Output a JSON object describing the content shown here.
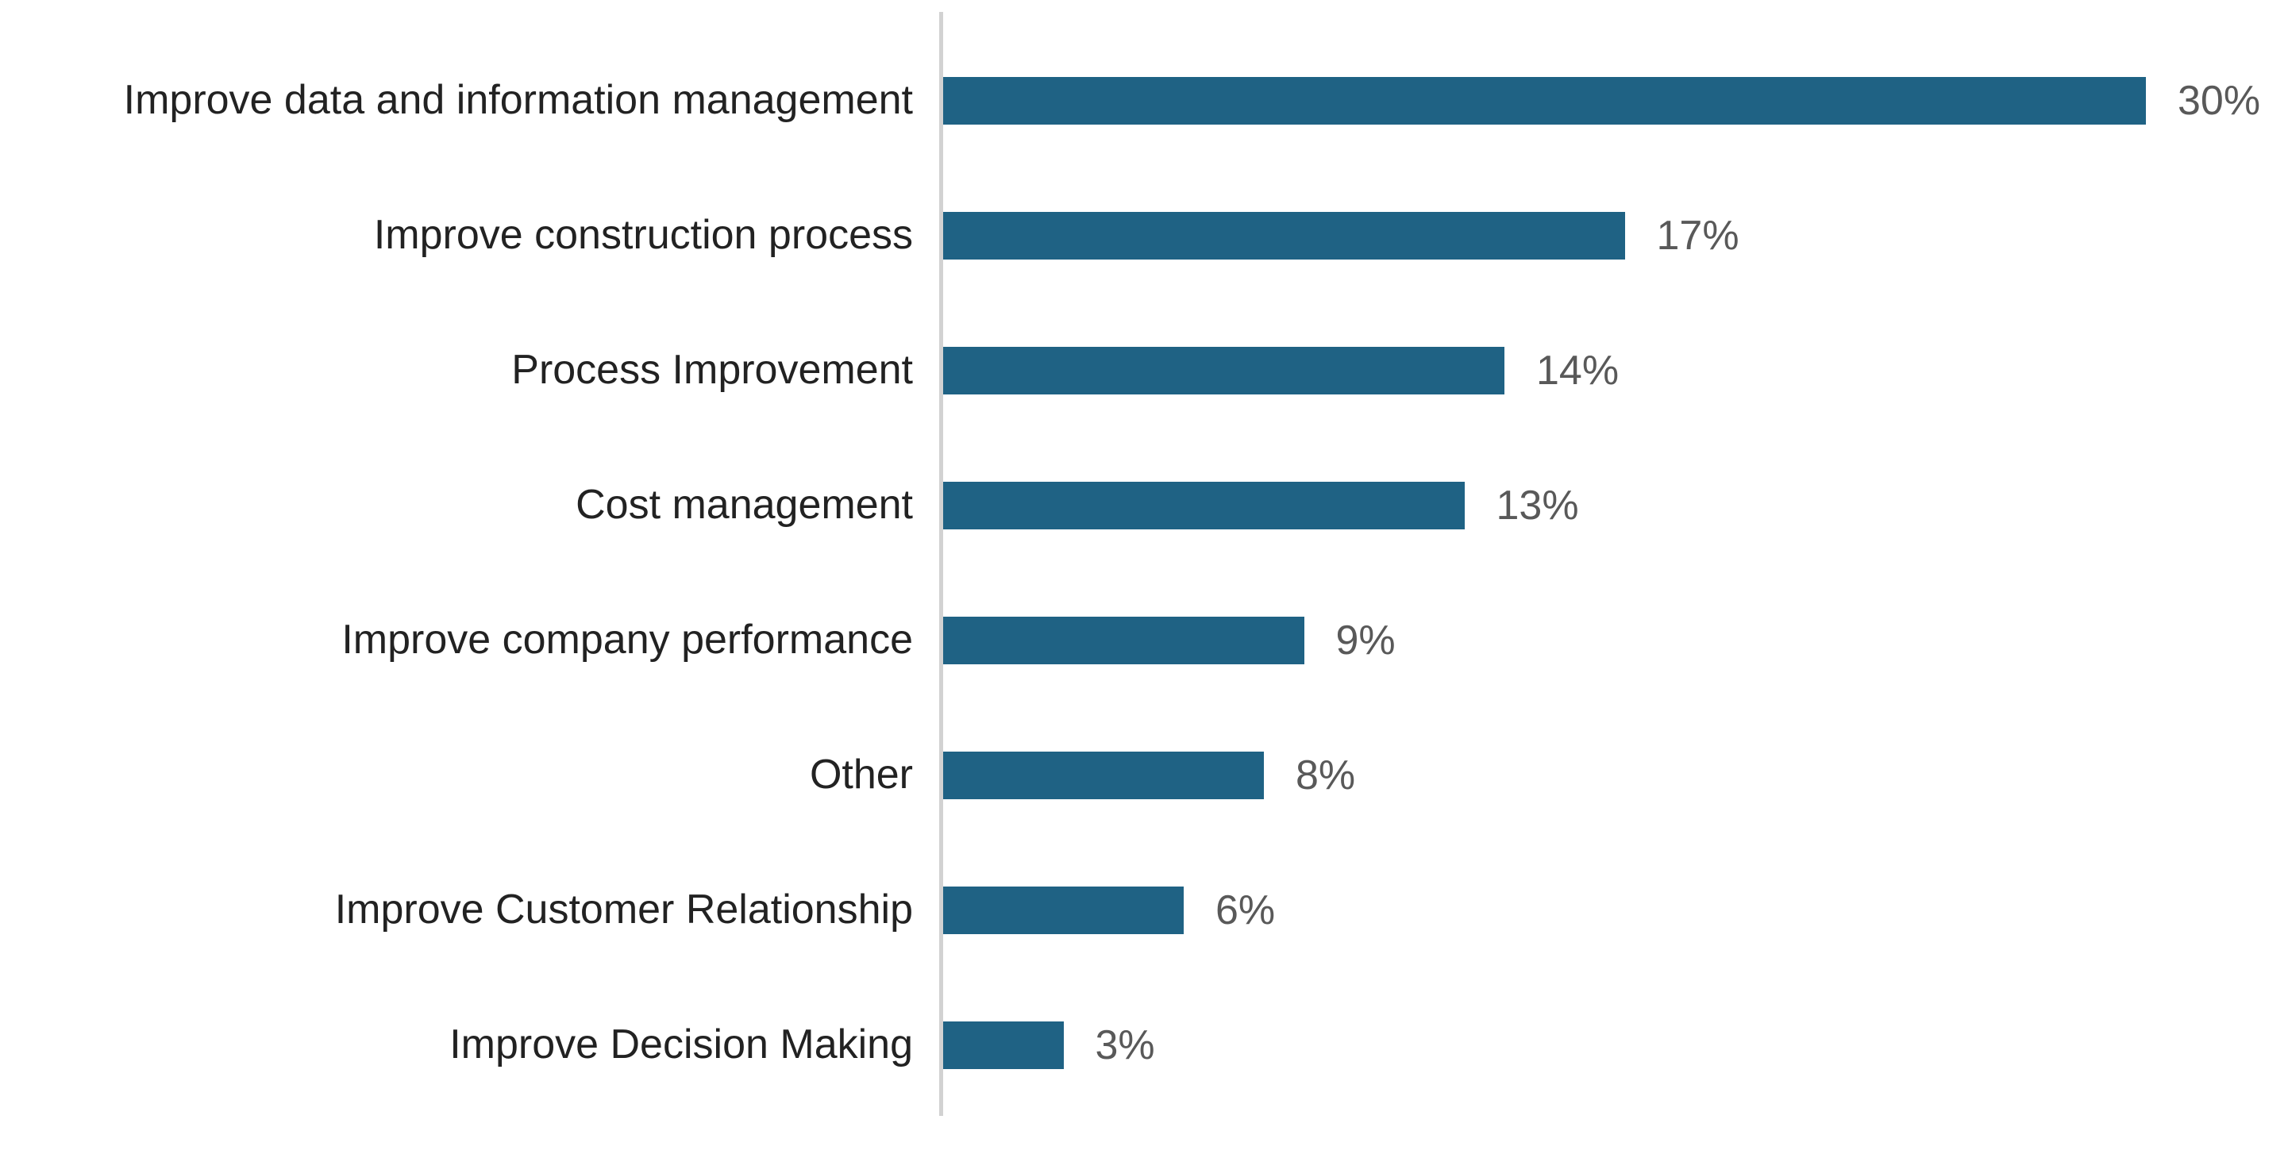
{
  "chart_data": {
    "type": "bar",
    "orientation": "horizontal",
    "title": "",
    "xlabel": "",
    "ylabel": "",
    "categories": [
      "Improve data and information management",
      "Improve construction process",
      "Process Improvement",
      "Cost management",
      "Improve company performance",
      "Other",
      "Improve Customer Relationship",
      "Improve Decision Making"
    ],
    "values": [
      30,
      17,
      14,
      13,
      9,
      8,
      6,
      3
    ],
    "value_labels": [
      "30%",
      "17%",
      "14%",
      "13%",
      "9%",
      "8%",
      "6%",
      "3%"
    ],
    "data_label_position": "outside-end",
    "axis_range_percent": [
      0,
      33.6
    ],
    "grid": false,
    "legend": false,
    "colors": {
      "bar": "#1f6284",
      "axis_line": "#d2d2d2",
      "category_text": "#222222",
      "value_text": "#595959",
      "background": "#ffffff"
    }
  }
}
